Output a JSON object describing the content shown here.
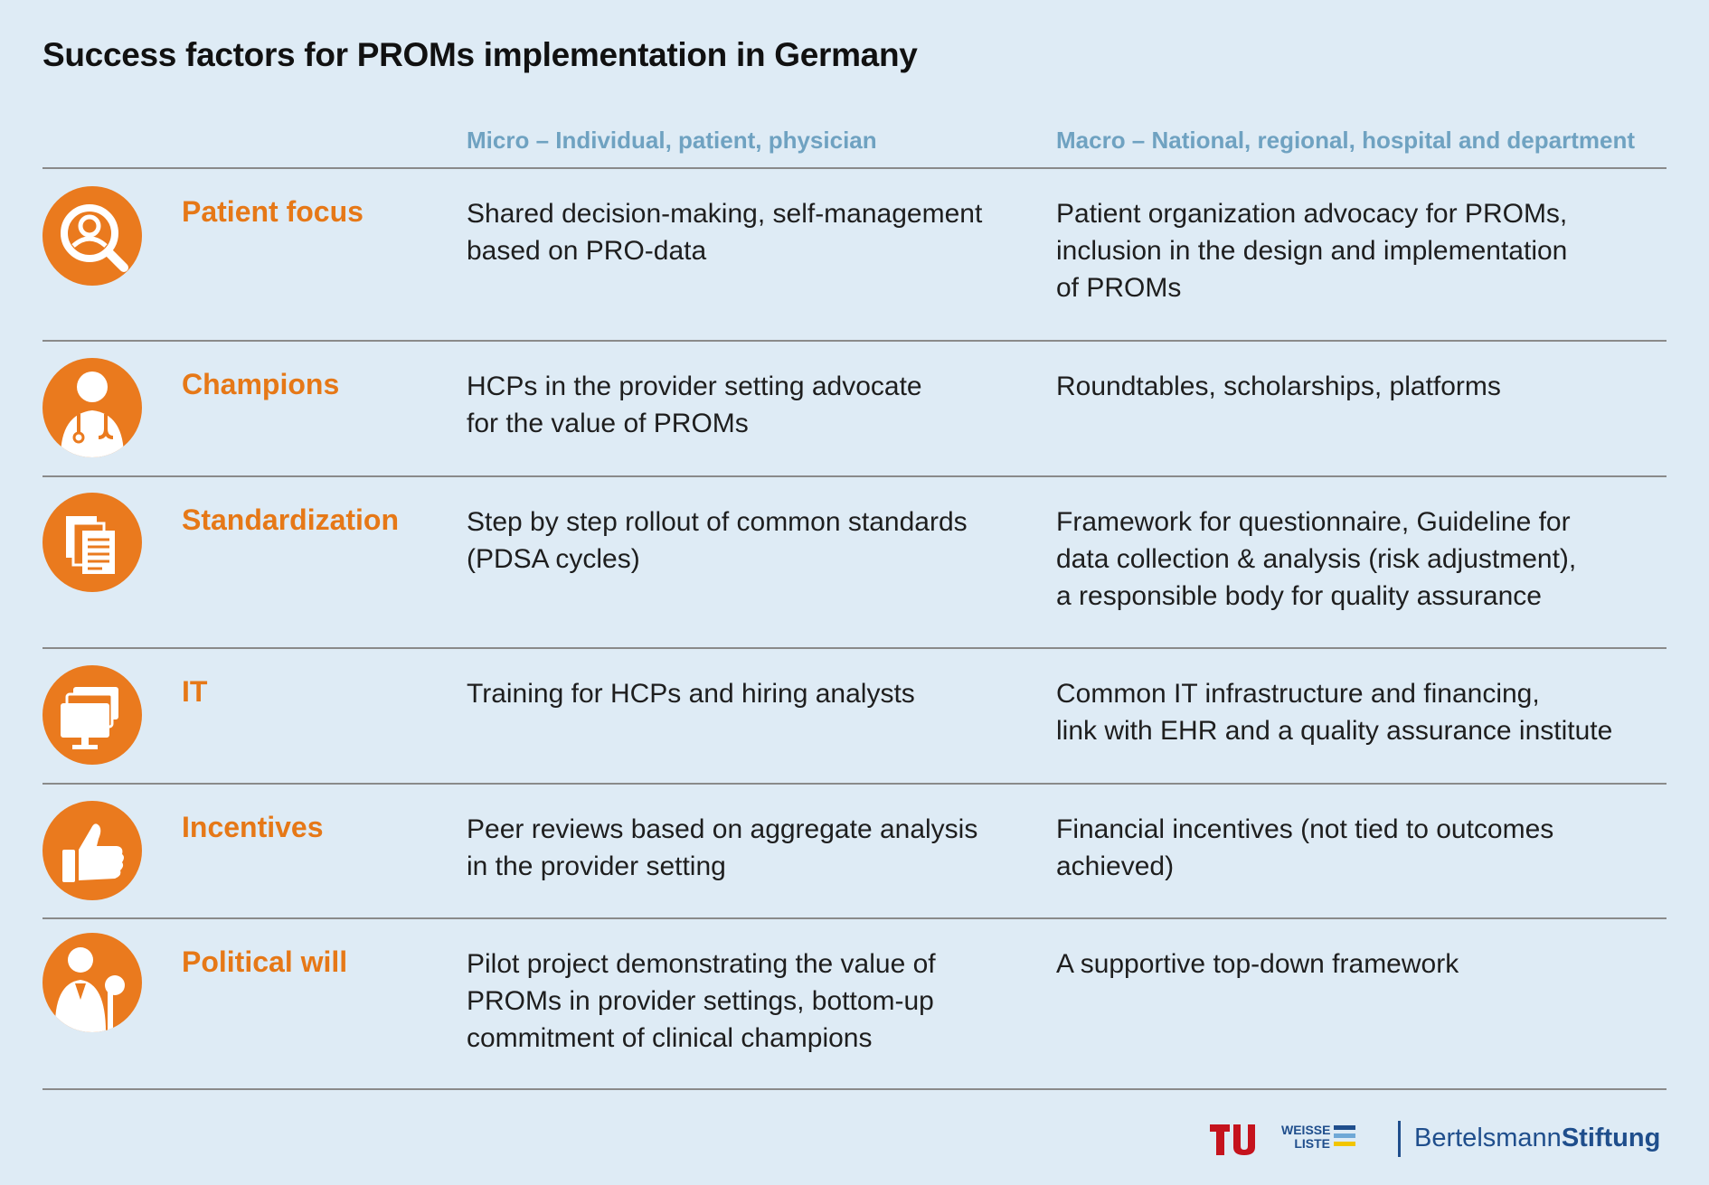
{
  "title": "Success factors for PROMs implementation in Germany",
  "columns": {
    "micro": "Micro – Individual, patient, physician",
    "macro": "Macro – National, regional, hospital and department"
  },
  "rows": [
    {
      "icon": "patient-search-icon",
      "factor": "Patient focus",
      "micro": "Shared decision-making, self-management\nbased on PRO-data",
      "macro": "Patient organization advocacy for PROMs,\ninclusion in the design and implementation\nof PROMs"
    },
    {
      "icon": "doctor-icon",
      "factor": "Champions",
      "micro": "HCPs in the provider setting advocate\nfor the value of PROMs",
      "macro": "Roundtables, scholarships, platforms"
    },
    {
      "icon": "documents-icon",
      "factor": "Standardization",
      "micro": "Step by step rollout of common standards\n(PDSA cycles)",
      "macro": "Framework for questionnaire, Guideline for\ndata collection & analysis (risk adjustment),\na responsible body for quality assurance"
    },
    {
      "icon": "computers-icon",
      "factor": "IT",
      "micro": "Training for HCPs and hiring analysts",
      "macro": "Common IT infrastructure and financing,\nlink with EHR and a quality assurance institute"
    },
    {
      "icon": "thumbs-up-icon",
      "factor": "Incentives",
      "micro": "Peer reviews based on aggregate analysis\nin the provider setting",
      "macro": "Financial incentives (not tied to outcomes\nachieved)"
    },
    {
      "icon": "politician-icon",
      "factor": "Political will",
      "micro": "Pilot project demonstrating the value of\nPROMs in provider settings, bottom-up\ncommitment of clinical champions",
      "macro": "A supportive top-down framework"
    }
  ],
  "logos": {
    "tu": "TU Berlin logo",
    "weisse_liste_line1": "WEISSE",
    "weisse_liste_line2": "LISTE",
    "bertelsmann_regular": "Bertelsmann",
    "bertelsmann_bold": "Stiftung"
  },
  "colors": {
    "accent": "#ea7a1e",
    "factor_text": "#e67817",
    "column_header": "#6fa2c1",
    "background": "#deebf5",
    "brand_blue": "#1f4e8c"
  }
}
